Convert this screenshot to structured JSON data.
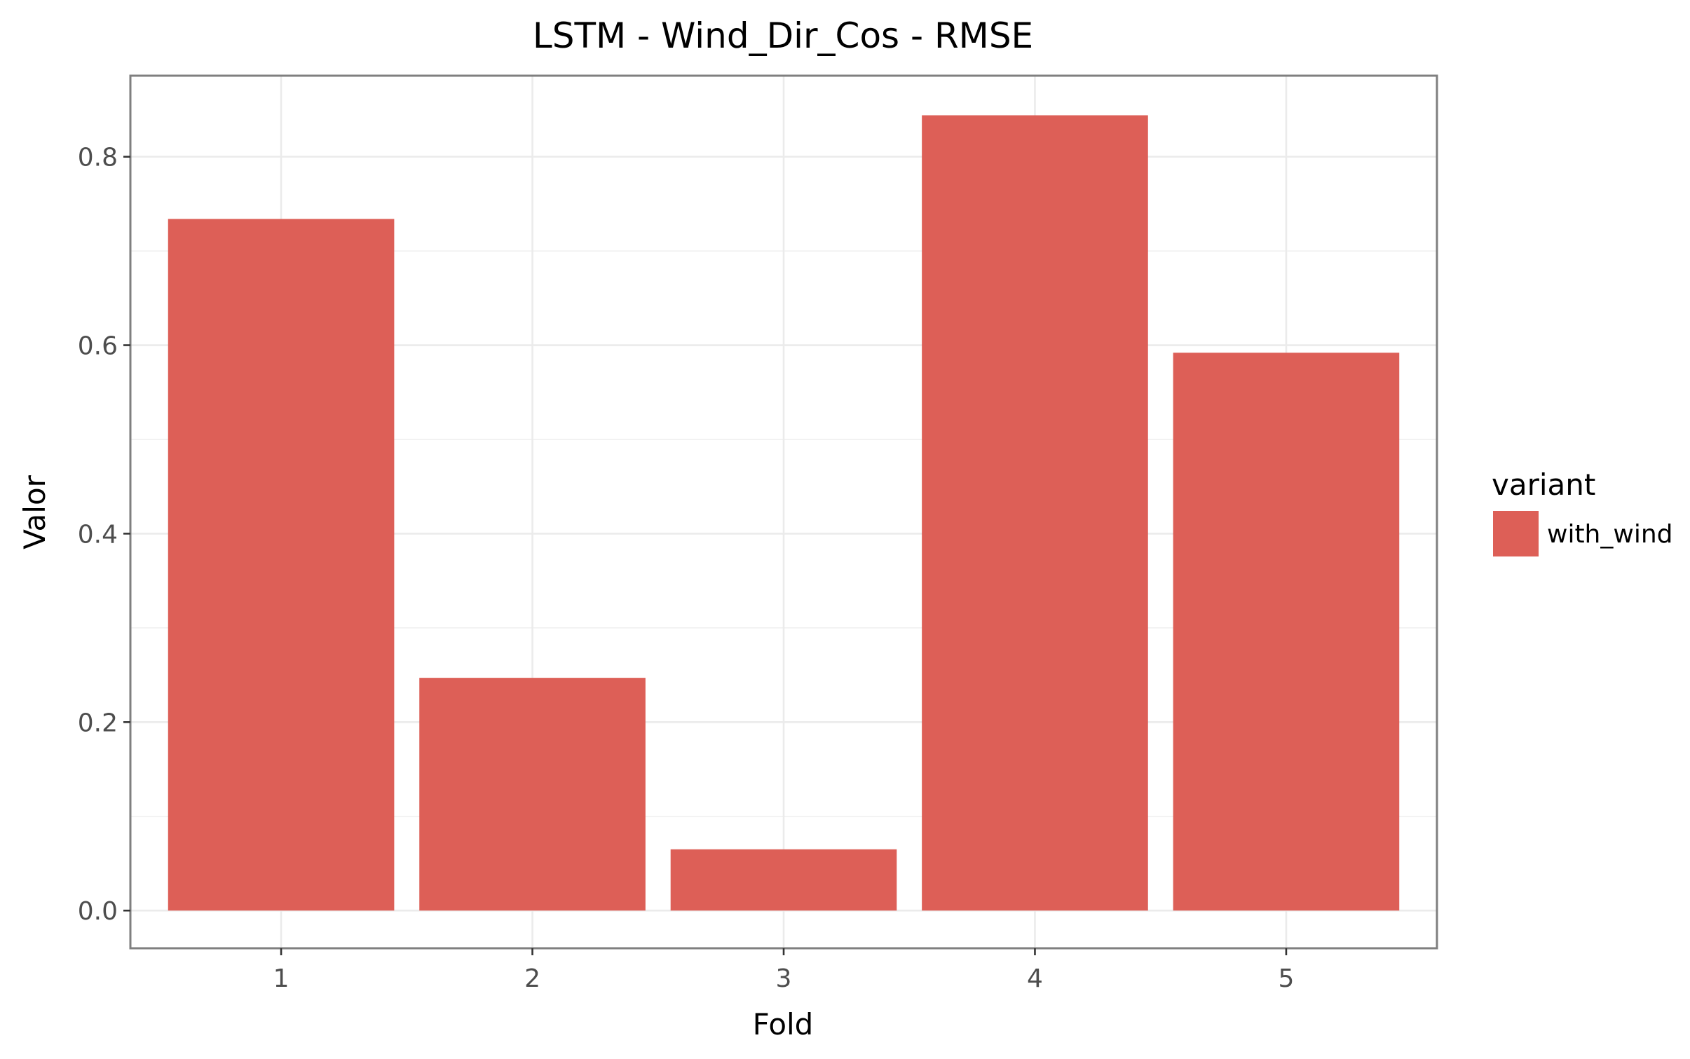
{
  "chart_data": {
    "type": "bar",
    "title": "LSTM - Wind_Dir_Cos - RMSE",
    "xlabel": "Fold",
    "ylabel": "Valor",
    "categories": [
      "1",
      "2",
      "3",
      "4",
      "5"
    ],
    "series": [
      {
        "name": "with_wind",
        "values": [
          0.734,
          0.247,
          0.065,
          0.844,
          0.592
        ],
        "color": "#dd5f57"
      }
    ],
    "ylim": [
      -0.04,
      0.886
    ],
    "y_ticks": [
      0.0,
      0.2,
      0.4,
      0.6,
      0.8
    ],
    "y_tick_labels": [
      "0.0",
      "0.2",
      "0.4",
      "0.6",
      "0.8"
    ],
    "grid": true,
    "legend": {
      "title": "variant",
      "position": "right"
    },
    "panel_background": "#ffffff",
    "grid_color": "#ebebeb",
    "panel_border_color": "#7f7f7f"
  }
}
